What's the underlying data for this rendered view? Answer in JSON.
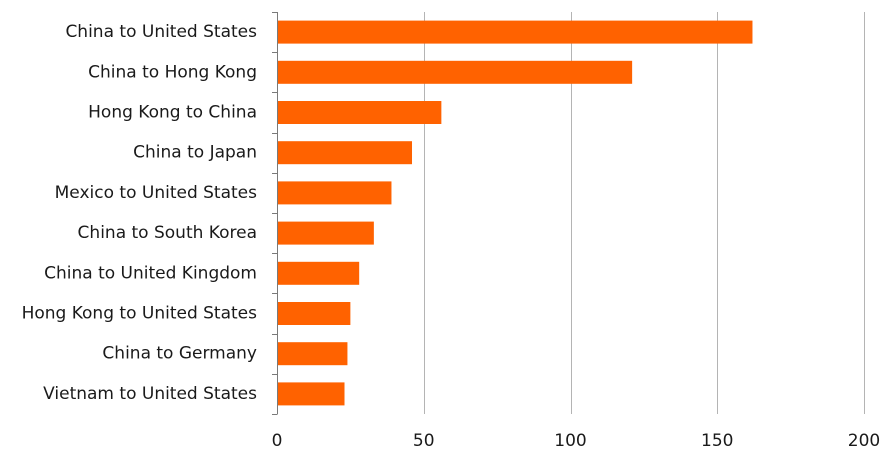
{
  "chart_data": {
    "type": "bar",
    "orientation": "horizontal",
    "title": "",
    "xlabel": "",
    "ylabel": "",
    "categories": [
      "China to United States",
      "China to Hong Kong",
      "Hong Kong to China",
      "China to Japan",
      "Mexico to United States",
      "China to South Korea",
      "China to United Kingdom",
      "Hong Kong to United States",
      "China to Germany",
      "Vietnam to United States"
    ],
    "values": [
      162,
      121,
      56,
      46,
      39,
      33,
      28,
      25,
      24,
      23
    ],
    "xlim": [
      0,
      200
    ],
    "xticks": [
      0,
      50,
      100,
      150,
      200
    ],
    "grid": "vertical",
    "legend": "none",
    "bar_color": "#ff6200"
  }
}
